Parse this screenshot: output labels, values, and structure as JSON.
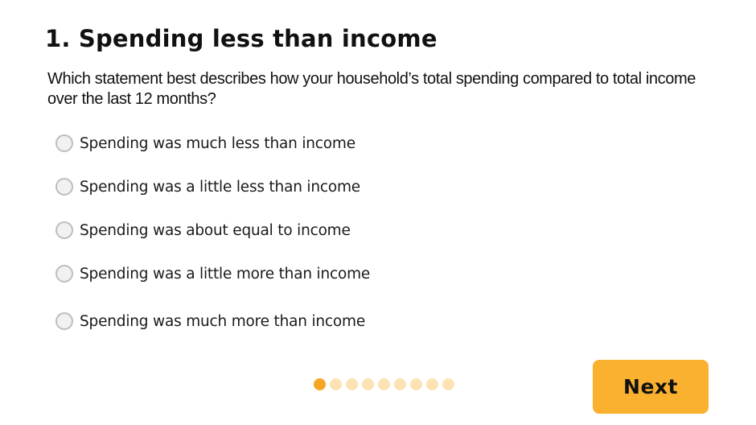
{
  "question": {
    "title": "1. Spending less than income",
    "text": "Which statement best describes how your household’s total spending compared to total income over the last 12 months?"
  },
  "options": [
    {
      "label": "Spending was much less than income",
      "selected": false
    },
    {
      "label": "Spending was a little less than income",
      "selected": false
    },
    {
      "label": "Spending was about equal to income",
      "selected": false
    },
    {
      "label": "Spending was a little more than income",
      "selected": false
    },
    {
      "label": "Spending was much more than income",
      "selected": false
    }
  ],
  "pager": {
    "current": 1,
    "total": 9
  },
  "navigation": {
    "next_label": "Next"
  },
  "colors": {
    "accent": "#fbb130",
    "dot_active": "#f5a623",
    "dot_inactive": "#fde3b3"
  }
}
